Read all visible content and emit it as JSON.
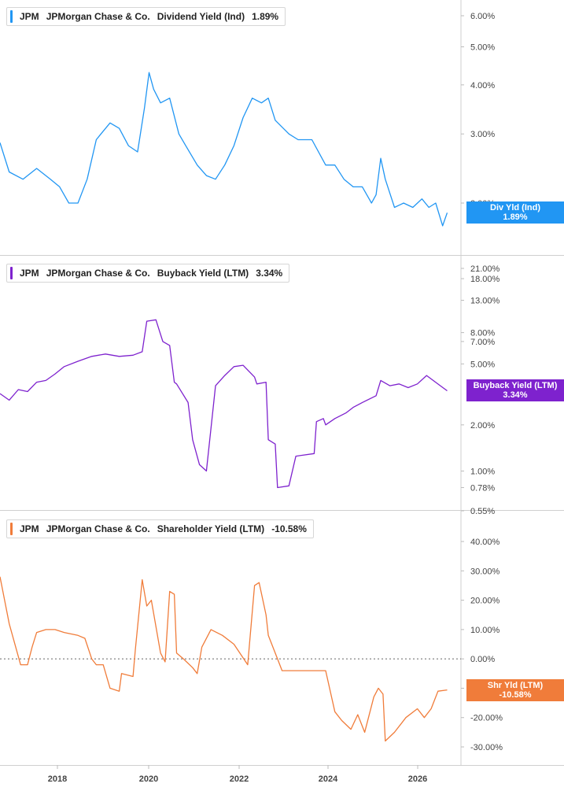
{
  "x_axis": {
    "ticks": [
      "2018",
      "2020",
      "2022",
      "2024",
      "2026"
    ]
  },
  "chart_data": [
    {
      "type": "line",
      "ticker": "JPM",
      "company": "JPMorgan Chase & Co.",
      "metric": "Dividend Yield (Ind)",
      "last_value": "1.89%",
      "tag_label": "Div Yld (Ind)",
      "color": "#2196f3",
      "scale": "log",
      "ylim": [
        1.7,
        6.6
      ],
      "yticks": [
        {
          "v": 6,
          "label": "6.00%"
        },
        {
          "v": 5,
          "label": "5.00%"
        },
        {
          "v": 4,
          "label": "4.00%"
        },
        {
          "v": 3,
          "label": "3.00%"
        },
        {
          "v": 2,
          "label": "2.00%"
        }
      ],
      "x": [
        2016.9,
        2017.1,
        2017.4,
        2017.7,
        2018.0,
        2018.2,
        2018.4,
        2018.6,
        2018.8,
        2019.0,
        2019.1,
        2019.3,
        2019.5,
        2019.7,
        2019.9,
        2020.05,
        2020.15,
        2020.25,
        2020.4,
        2020.6,
        2020.8,
        2020.95,
        2021.2,
        2021.4,
        2021.6,
        2021.8,
        2022.0,
        2022.2,
        2022.4,
        2022.6,
        2022.75,
        2022.9,
        2023.2,
        2023.4,
        2023.7,
        2024.0,
        2024.2,
        2024.4,
        2024.6,
        2024.8,
        2025.0,
        2025.1,
        2025.2,
        2025.3,
        2025.5,
        2025.7,
        2025.9,
        2026.1,
        2026.25,
        2026.4,
        2026.55,
        2026.65
      ],
      "values": [
        2.85,
        2.4,
        2.3,
        2.45,
        2.3,
        2.2,
        2.0,
        2.0,
        2.3,
        2.9,
        3.0,
        3.2,
        3.1,
        2.8,
        2.7,
        3.5,
        4.3,
        3.9,
        3.6,
        3.7,
        3.0,
        2.8,
        2.5,
        2.35,
        2.3,
        2.5,
        2.8,
        3.3,
        3.7,
        3.6,
        3.7,
        3.25,
        3.0,
        2.9,
        2.9,
        2.5,
        2.5,
        2.3,
        2.2,
        2.2,
        2.0,
        2.1,
        2.6,
        2.3,
        1.95,
        2.0,
        1.95,
        2.05,
        1.95,
        2.0,
        1.75,
        1.89
      ]
    },
    {
      "type": "line",
      "ticker": "JPM",
      "company": "JPMorgan Chase & Co.",
      "metric": "Buyback Yield (LTM)",
      "last_value": "3.34%",
      "tag_label": "Buyback Yield (LTM)",
      "color": "#7e22ce",
      "scale": "log",
      "ylim": [
        0.55,
        22
      ],
      "yticks": [
        {
          "v": 21,
          "label": "21.00%"
        },
        {
          "v": 18,
          "label": "18.00%"
        },
        {
          "v": 13,
          "label": "13.00%"
        },
        {
          "v": 8,
          "label": "8.00%"
        },
        {
          "v": 7,
          "label": "7.00%"
        },
        {
          "v": 5,
          "label": "5.00%"
        },
        {
          "v": 2,
          "label": "2.00%"
        },
        {
          "v": 1,
          "label": "1.00%"
        },
        {
          "v": 0.78,
          "label": "0.78%"
        },
        {
          "v": 0.55,
          "label": "0.55%"
        }
      ],
      "x": [
        2016.9,
        2017.1,
        2017.3,
        2017.5,
        2017.7,
        2017.9,
        2018.1,
        2018.3,
        2018.6,
        2018.9,
        2019.2,
        2019.5,
        2019.8,
        2020.0,
        2020.1,
        2020.3,
        2020.45,
        2020.6,
        2020.7,
        2020.75,
        2021.0,
        2021.1,
        2021.25,
        2021.4,
        2021.6,
        2021.8,
        2022.0,
        2022.2,
        2022.45,
        2022.5,
        2022.7,
        2022.75,
        2022.9,
        2022.95,
        2023.2,
        2023.35,
        2023.75,
        2023.8,
        2023.95,
        2024.0,
        2024.2,
        2024.45,
        2024.6,
        2024.8,
        2025.1,
        2025.2,
        2025.4,
        2025.6,
        2025.8,
        2026.0,
        2026.2,
        2026.5,
        2026.65
      ],
      "values": [
        3.2,
        2.9,
        3.4,
        3.3,
        3.8,
        3.9,
        4.3,
        4.8,
        5.2,
        5.6,
        5.8,
        5.6,
        5.7,
        6.0,
        9.5,
        9.7,
        7.0,
        6.6,
        3.8,
        3.7,
        2.8,
        1.6,
        1.1,
        1.0,
        3.6,
        4.2,
        4.8,
        4.9,
        4.1,
        3.7,
        3.8,
        1.6,
        1.5,
        0.78,
        0.8,
        1.25,
        1.3,
        2.1,
        2.2,
        2.0,
        2.2,
        2.4,
        2.6,
        2.8,
        3.1,
        3.9,
        3.6,
        3.7,
        3.5,
        3.7,
        4.2,
        3.6,
        3.34
      ]
    },
    {
      "type": "line",
      "ticker": "JPM",
      "company": "JPMorgan Chase & Co.",
      "metric": "Shareholder Yield (LTM)",
      "last_value": "-10.58%",
      "tag_label": "Shr Yld (LTM)",
      "color": "#f07c3a",
      "scale": "linear",
      "ylim": [
        -34,
        44
      ],
      "yticks": [
        {
          "v": 40,
          "label": "40.00%"
        },
        {
          "v": 30,
          "label": "30.00%"
        },
        {
          "v": 20,
          "label": "20.00%"
        },
        {
          "v": 10,
          "label": "10.00%"
        },
        {
          "v": 0,
          "label": "0.00%"
        },
        {
          "v": -10,
          "label": "-10.00%"
        },
        {
          "v": -20,
          "label": "-20.00%"
        },
        {
          "v": -30,
          "label": "-30.00%"
        }
      ],
      "zero_line": true,
      "x": [
        2016.9,
        2017.1,
        2017.35,
        2017.5,
        2017.6,
        2017.7,
        2017.9,
        2018.1,
        2018.3,
        2018.6,
        2018.75,
        2018.9,
        2019.0,
        2019.15,
        2019.3,
        2019.5,
        2019.55,
        2019.8,
        2019.85,
        2020.0,
        2020.1,
        2020.2,
        2020.4,
        2020.5,
        2020.6,
        2020.7,
        2020.75,
        2020.9,
        2021.1,
        2021.2,
        2021.3,
        2021.5,
        2021.75,
        2022.0,
        2022.3,
        2022.45,
        2022.55,
        2022.7,
        2022.75,
        2022.95,
        2023.05,
        2023.3,
        2023.75,
        2024.0,
        2024.2,
        2024.35,
        2024.55,
        2024.7,
        2024.85,
        2025.05,
        2025.15,
        2025.25,
        2025.3,
        2025.5,
        2025.75,
        2026.0,
        2026.15,
        2026.3,
        2026.45,
        2026.65
      ],
      "values": [
        28,
        12,
        -2,
        -2,
        4,
        9,
        10,
        10,
        9,
        8,
        7,
        0,
        -2,
        -2,
        -10,
        -11,
        -5,
        -6,
        3,
        27,
        18,
        20,
        2,
        -1,
        23,
        22,
        2,
        0,
        -3,
        -5,
        4,
        10,
        8,
        5,
        -2,
        25,
        26,
        15,
        8,
        0,
        -4,
        -4,
        -4,
        -4,
        -18,
        -21,
        -24,
        -19,
        -25,
        -13,
        -10,
        -12,
        -28,
        -25,
        -20,
        -17,
        -20,
        -17,
        -11,
        -10.58
      ]
    }
  ]
}
